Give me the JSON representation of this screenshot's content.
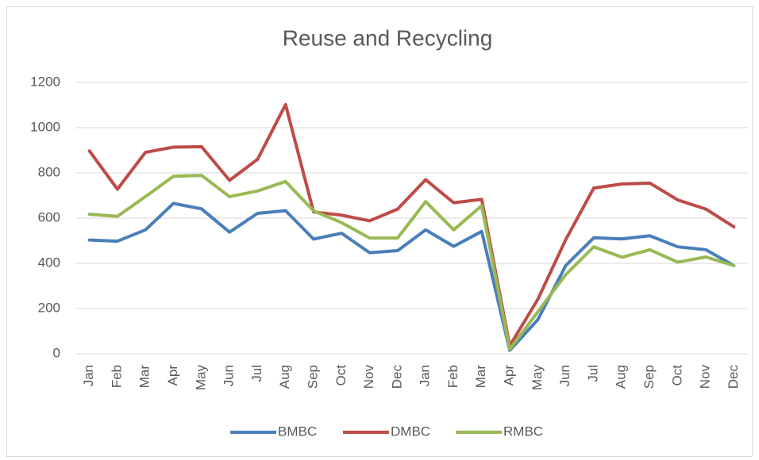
{
  "chart_data": {
    "type": "line",
    "title": "Reuse and Recycling",
    "categories": [
      "Jan",
      "Feb",
      "Mar",
      "Apr",
      "May",
      "Jun",
      "Jul",
      "Aug",
      "Sep",
      "Oct",
      "Nov",
      "Dec",
      "Jan",
      "Feb",
      "Mar",
      "Apr",
      "May",
      "Jun",
      "Jul",
      "Aug",
      "Sep",
      "Oct",
      "Nov",
      "Dec"
    ],
    "series": [
      {
        "name": "BMBC",
        "color": "#4a7ebb",
        "values": [
          503,
          498,
          548,
          665,
          641,
          538,
          621,
          633,
          507,
          533,
          447,
          456,
          548,
          475,
          541,
          15,
          150,
          390,
          513,
          508,
          522,
          473,
          460,
          390
        ]
      },
      {
        "name": "DMBC",
        "color": "#be4b48",
        "values": [
          897,
          728,
          891,
          914,
          916,
          767,
          860,
          1102,
          627,
          613,
          588,
          640,
          770,
          668,
          683,
          35,
          240,
          505,
          733,
          751,
          755,
          680,
          640,
          561
        ]
      },
      {
        "name": "RMBC",
        "color": "#98b954",
        "values": [
          617,
          608,
          695,
          785,
          789,
          695,
          720,
          762,
          632,
          580,
          512,
          512,
          673,
          548,
          655,
          20,
          185,
          350,
          473,
          427,
          460,
          405,
          428,
          390
        ]
      }
    ],
    "ylim": [
      0,
      1200
    ],
    "yticks": [
      0,
      200,
      400,
      600,
      800,
      1000,
      1200
    ],
    "grid": true,
    "legend": "bottom"
  }
}
